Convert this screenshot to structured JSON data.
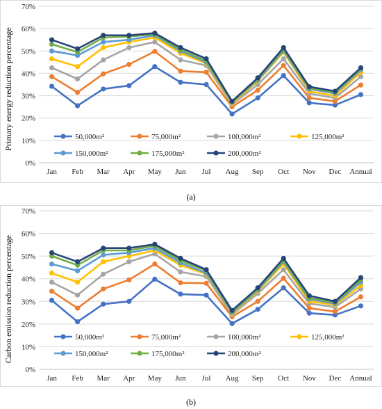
{
  "chart_data": [
    {
      "type": "line",
      "panel_label": "(a)",
      "ylabel": "Primary energy reduction percentage",
      "ylim": [
        0,
        70
      ],
      "yticks": [
        "0%",
        "10%",
        "20%",
        "30%",
        "40%",
        "50%",
        "60%",
        "70%"
      ],
      "categories": [
        "Jan",
        "Feb",
        "Mar",
        "Apr",
        "May",
        "Jun",
        "Jul",
        "Aug",
        "Sep",
        "Oct",
        "Nov",
        "Dec",
        "Annual"
      ],
      "grid": true,
      "legend_position": "inside-bottom",
      "series": [
        {
          "name": "50,000m²",
          "color": "#4472C4",
          "values": [
            34.2,
            25.5,
            33.0,
            34.5,
            43.0,
            36.0,
            35.0,
            21.8,
            29.0,
            39.0,
            26.8,
            25.8,
            30.5
          ]
        },
        {
          "name": "75,000m²",
          "color": "#ED7D31",
          "values": [
            38.5,
            31.5,
            39.8,
            44.0,
            49.8,
            41.0,
            40.5,
            25.0,
            32.5,
            43.5,
            29.0,
            27.5,
            34.8
          ]
        },
        {
          "name": "100,000m²",
          "color": "#A5A5A5",
          "values": [
            42.5,
            37.5,
            46.0,
            51.5,
            54.0,
            46.0,
            43.5,
            26.0,
            35.0,
            46.5,
            31.0,
            29.0,
            38.5
          ]
        },
        {
          "name": "125,000m²",
          "color": "#FFC000",
          "values": [
            46.5,
            43.0,
            51.5,
            54.0,
            56.0,
            49.0,
            44.5,
            26.5,
            36.5,
            49.5,
            32.0,
            30.0,
            40.5
          ]
        },
        {
          "name": "150,000m²",
          "color": "#5B9BD5",
          "values": [
            50.0,
            48.0,
            54.0,
            55.0,
            57.0,
            50.0,
            45.0,
            27.0,
            37.0,
            50.0,
            33.0,
            31.0,
            41.5
          ]
        },
        {
          "name": "175,000m²",
          "color": "#70AD47",
          "values": [
            53.0,
            49.5,
            56.0,
            56.5,
            57.5,
            50.5,
            45.5,
            27.2,
            37.5,
            50.5,
            33.5,
            31.5,
            42.0
          ]
        },
        {
          "name": "200,000m²",
          "color": "#264478",
          "values": [
            55.0,
            51.0,
            57.0,
            57.0,
            58.0,
            51.5,
            46.5,
            27.5,
            38.0,
            51.5,
            34.0,
            32.0,
            42.5
          ]
        }
      ]
    },
    {
      "type": "line",
      "panel_label": "(b)",
      "ylabel": "Carbon emission reduction percentage",
      "ylim": [
        0,
        70
      ],
      "yticks": [
        "0%",
        "10%",
        "20%",
        "30%",
        "40%",
        "50%",
        "60%",
        "70%"
      ],
      "categories": [
        "Jan",
        "Feb",
        "Mar",
        "Apr",
        "May",
        "Jun",
        "Jul",
        "Aug",
        "Sep",
        "Oct",
        "Nov",
        "Dec",
        "Annual"
      ],
      "grid": true,
      "legend_position": "inside-bottom",
      "series": [
        {
          "name": "50,000m²",
          "color": "#4472C4",
          "values": [
            30.5,
            21.0,
            28.8,
            30.0,
            39.8,
            33.2,
            32.8,
            20.2,
            26.5,
            36.0,
            24.8,
            24.0,
            28.0
          ]
        },
        {
          "name": "75,000m²",
          "color": "#ED7D31",
          "values": [
            34.5,
            27.0,
            35.5,
            39.5,
            46.5,
            38.2,
            38.0,
            23.2,
            30.0,
            40.2,
            27.0,
            25.5,
            32.0
          ]
        },
        {
          "name": "100,000m²",
          "color": "#A5A5A5",
          "values": [
            38.5,
            32.8,
            42.0,
            47.5,
            51.0,
            43.0,
            41.0,
            24.0,
            33.5,
            44.0,
            29.0,
            27.5,
            35.5
          ]
        },
        {
          "name": "125,000m²",
          "color": "#FFC000",
          "values": [
            42.5,
            38.5,
            47.5,
            50.0,
            52.5,
            46.0,
            42.0,
            24.5,
            34.5,
            46.5,
            30.0,
            28.5,
            37.0
          ]
        },
        {
          "name": "150,000m²",
          "color": "#5B9BD5",
          "values": [
            46.5,
            43.5,
            50.5,
            51.5,
            53.5,
            47.0,
            42.5,
            25.0,
            35.0,
            47.5,
            31.0,
            29.0,
            38.5
          ]
        },
        {
          "name": "175,000m²",
          "color": "#70AD47",
          "values": [
            50.0,
            46.0,
            52.5,
            52.5,
            54.5,
            48.0,
            43.5,
            25.5,
            35.5,
            48.0,
            31.5,
            29.5,
            39.5
          ]
        },
        {
          "name": "200,000m²",
          "color": "#264478",
          "values": [
            51.5,
            47.5,
            53.5,
            53.5,
            55.2,
            49.0,
            44.0,
            26.0,
            36.0,
            49.0,
            32.5,
            30.0,
            40.5
          ]
        }
      ]
    }
  ]
}
